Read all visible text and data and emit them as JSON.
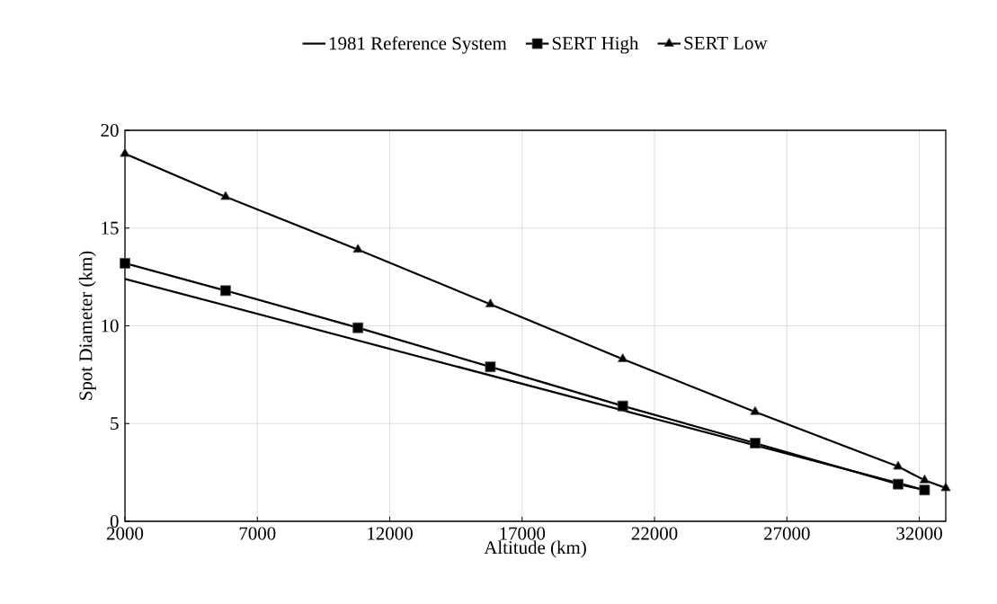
{
  "chart_data": {
    "type": "line",
    "xlabel": "Altitude (km)",
    "ylabel": "Spot Diameter (km)",
    "xlim": [
      2000,
      33000
    ],
    "xticks": [
      2000,
      7000,
      12000,
      17000,
      22000,
      27000,
      32000
    ],
    "ylim": [
      0,
      20
    ],
    "yticks": [
      0,
      5,
      10,
      15,
      20
    ],
    "grid": true,
    "legend": "top",
    "line_style": "solid",
    "series": [
      {
        "name": "1981 Reference System",
        "color": "#000000",
        "x": [
          2000,
          32200
        ],
        "values": [
          12.4,
          1.6
        ]
      },
      {
        "name": "SERT High",
        "color": "#000000",
        "marker": "square",
        "x": [
          2000,
          5800,
          10800,
          15800,
          20800,
          25800,
          31200,
          32200
        ],
        "values": [
          13.2,
          11.8,
          9.9,
          7.9,
          5.9,
          4.0,
          1.9,
          1.6
        ]
      },
      {
        "name": "SERT Low",
        "color": "#000000",
        "marker": "triangle",
        "x": [
          2000,
          5800,
          10800,
          15800,
          20800,
          25800,
          31200,
          32200,
          33000
        ],
        "values": [
          18.8,
          16.6,
          13.9,
          11.1,
          8.3,
          5.6,
          2.8,
          2.1,
          1.7
        ]
      }
    ]
  }
}
